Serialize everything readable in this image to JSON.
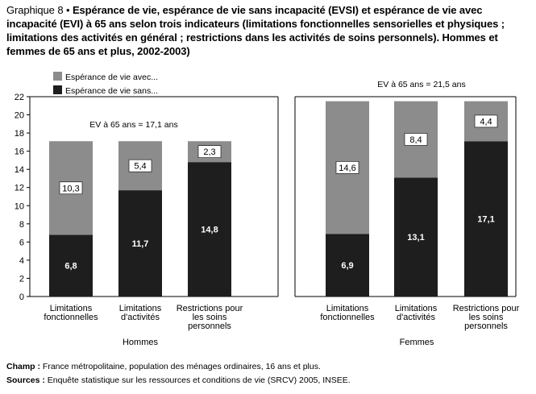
{
  "title": {
    "prefix": "Graphique 8 •",
    "text": "Espérance de vie, espérance de vie sans incapacité (EVSI) et espérance de vie avec incapacité (EVI) à 65 ans selon trois indicateurs (limitations fonctionnelles sensorielles et physiques ; limitations des activités en général ; restrictions dans les activités de soins personnels). Hommes et femmes de 65 ans et plus, 2002-2003)"
  },
  "chart_data": {
    "type": "bar",
    "stacked": true,
    "ylim": [
      0,
      22
    ],
    "yticks": [
      0,
      2,
      4,
      6,
      8,
      10,
      12,
      14,
      16,
      18,
      20,
      22
    ],
    "legend": [
      {
        "name": "Espérance de vie avec...",
        "color": "#8c8c8c"
      },
      {
        "name": "Espérance de vie sans...",
        "color": "#1e1e1e"
      }
    ],
    "panels": [
      {
        "group": "Hommes",
        "ev_note": "EV à 65 ans = 17,1 ans",
        "categories": [
          "Limitations fonctionnelles",
          "Limitations d'activités",
          "Restrictions pour les soins personnels"
        ],
        "category_lines": [
          [
            "Limitations",
            "fonctionnelles"
          ],
          [
            "Limitations",
            "d'activités"
          ],
          [
            "Restrictions pour",
            "les soins",
            "personnels"
          ]
        ],
        "series": [
          {
            "name": "Espérance de vie sans...",
            "values": [
              6.8,
              11.7,
              14.8
            ],
            "labels": [
              "6,8",
              "11,7",
              "14,8"
            ]
          },
          {
            "name": "Espérance de vie avec...",
            "values": [
              10.3,
              5.4,
              2.3
            ],
            "labels": [
              "10,3",
              "5,4",
              "2,3"
            ]
          }
        ]
      },
      {
        "group": "Femmes",
        "ev_note": "EV à 65 ans = 21,5 ans",
        "categories": [
          "Limitations fonctionnelles",
          "Limitations d'activités",
          "Restrictions pour les soins personnels"
        ],
        "category_lines": [
          [
            "Limitations",
            "fonctionnelles"
          ],
          [
            "Limitations",
            "d'activités"
          ],
          [
            "Restrictions pour",
            "les soins",
            "personnels"
          ]
        ],
        "series": [
          {
            "name": "Espérance de vie sans...",
            "values": [
              6.9,
              13.1,
              17.1
            ],
            "labels": [
              "6,9",
              "13,1",
              "17,1"
            ]
          },
          {
            "name": "Espérance de vie avec...",
            "values": [
              14.6,
              8.4,
              4.4
            ],
            "labels": [
              "14,6",
              "8,4",
              "4,4"
            ]
          }
        ]
      }
    ]
  },
  "notes": {
    "champ_label": "Champ :",
    "champ_text": "France métropolitaine, population des ménages ordinaires, 16 ans et plus.",
    "sources_label": "Sources :",
    "sources_text": "Enquête statistique sur les ressources et conditions de vie (SRCV) 2005, INSEE."
  }
}
